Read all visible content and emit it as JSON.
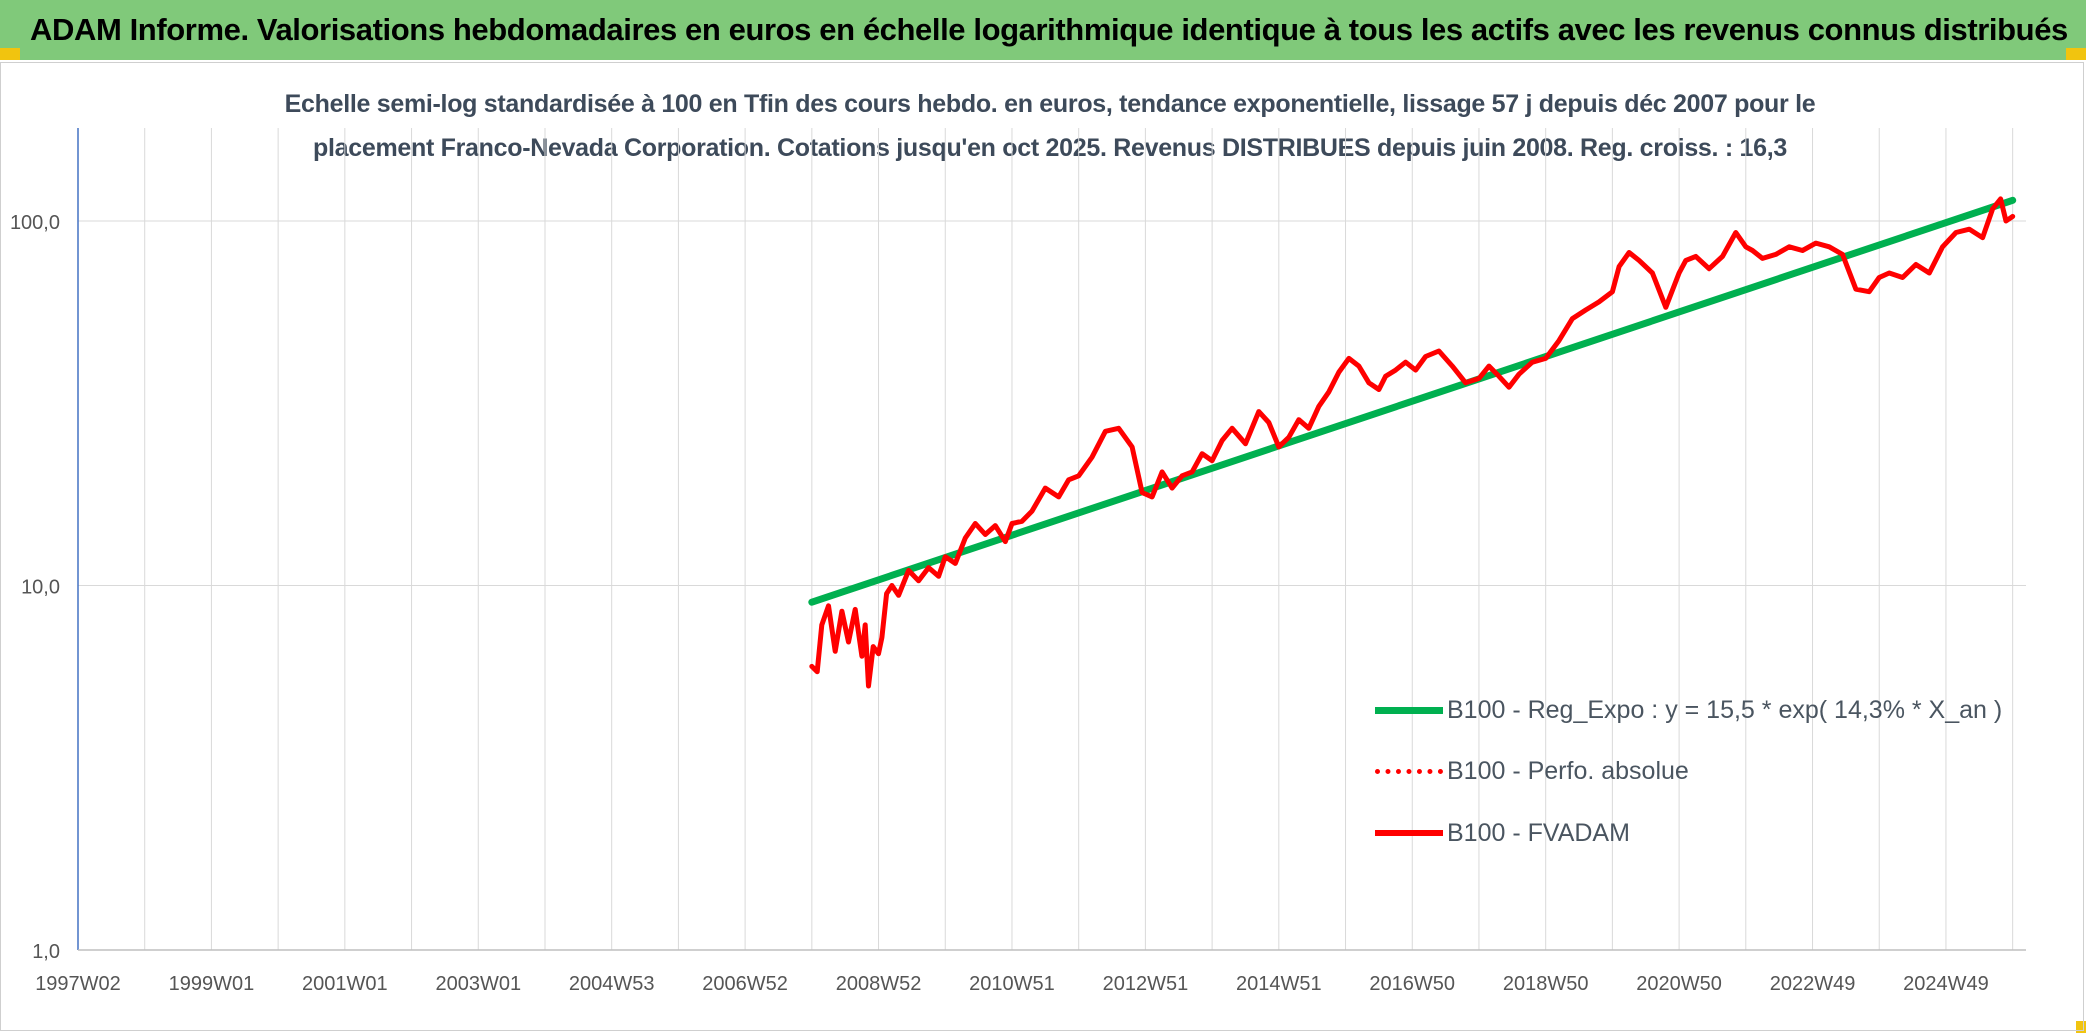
{
  "header": {
    "title": "ADAM Informe. Valorisations hebdomadaires en euros en échelle logarithmique identique à tous les actifs avec les revenus connus distribués"
  },
  "chart_data": {
    "type": "line",
    "title_line1": "Echelle semi-log standardisée à 100 en Tfin des cours hebdo. en euros, tendance exponentielle, lissage 57 j depuis déc 2007 pour le",
    "title_line2": "placement Franco-Nevada Corporation. Cotations jusqu'en oct 2025. Revenus DISTRIBUES depuis juin 2008. Reg. croiss. : 16,3",
    "y_scale": "log",
    "ylim": [
      1,
      180
    ],
    "y_ticks": [
      1,
      10,
      100
    ],
    "y_tick_labels": [
      "1,0",
      "10,0",
      "100,0"
    ],
    "xlim": [
      1997.0,
      2026.2
    ],
    "x_ticks": [
      {
        "label": "1997W02",
        "x": 1997.0
      },
      {
        "label": "1999W01",
        "x": 1999.0
      },
      {
        "label": "2001W01",
        "x": 2001.0
      },
      {
        "label": "2003W01",
        "x": 2003.0
      },
      {
        "label": "2004W53",
        "x": 2005.0
      },
      {
        "label": "2006W52",
        "x": 2007.0
      },
      {
        "label": "2008W52",
        "x": 2009.0
      },
      {
        "label": "2010W51",
        "x": 2011.0
      },
      {
        "label": "2012W51",
        "x": 2013.0
      },
      {
        "label": "2014W51",
        "x": 2015.0
      },
      {
        "label": "2016W50",
        "x": 2017.0
      },
      {
        "label": "2018W50",
        "x": 2019.0
      },
      {
        "label": "2020W50",
        "x": 2021.0
      },
      {
        "label": "2022W49",
        "x": 2023.0
      },
      {
        "label": "2024W49",
        "x": 2025.0
      }
    ],
    "grid": true,
    "legend_position": "bottom-right",
    "series": [
      {
        "name": "B100 - Reg_Expo : y = 15,5 * exp( 14,3% *  X_an )",
        "color": "#00b050",
        "style": "solid-thick",
        "x": [
          2008.0,
          2026.0
        ],
        "y": [
          9.0,
          114.0
        ]
      },
      {
        "name": "B100 - Perfo. absolue",
        "color": "#ff0000",
        "style": "dotted",
        "x": [],
        "y": []
      },
      {
        "name": "B100 - FVADAM",
        "color": "#ff0000",
        "style": "solid",
        "x": [
          2008.0,
          2008.08,
          2008.15,
          2008.25,
          2008.35,
          2008.45,
          2008.55,
          2008.65,
          2008.75,
          2008.8,
          2008.85,
          2008.92,
          2009.0,
          2009.05,
          2009.12,
          2009.2,
          2009.3,
          2009.45,
          2009.6,
          2009.75,
          2009.9,
          2010.0,
          2010.15,
          2010.3,
          2010.45,
          2010.6,
          2010.75,
          2010.9,
          2011.0,
          2011.15,
          2011.3,
          2011.5,
          2011.7,
          2011.85,
          2012.0,
          2012.2,
          2012.4,
          2012.6,
          2012.8,
          2012.95,
          2013.1,
          2013.25,
          2013.4,
          2013.55,
          2013.7,
          2013.85,
          2014.0,
          2014.15,
          2014.3,
          2014.5,
          2014.7,
          2014.85,
          2015.0,
          2015.15,
          2015.3,
          2015.45,
          2015.6,
          2015.75,
          2015.9,
          2016.05,
          2016.2,
          2016.35,
          2016.5,
          2016.6,
          2016.75,
          2016.9,
          2017.05,
          2017.2,
          2017.4,
          2017.6,
          2017.8,
          2018.0,
          2018.15,
          2018.3,
          2018.45,
          2018.6,
          2018.8,
          2019.0,
          2019.2,
          2019.4,
          2019.6,
          2019.8,
          2020.0,
          2020.1,
          2020.25,
          2020.4,
          2020.6,
          2020.8,
          2021.0,
          2021.1,
          2021.25,
          2021.45,
          2021.65,
          2021.85,
          2022.0,
          2022.1,
          2022.25,
          2022.45,
          2022.65,
          2022.85,
          2023.05,
          2023.25,
          2023.45,
          2023.65,
          2023.85,
          2024.0,
          2024.15,
          2024.35,
          2024.55,
          2024.75,
          2024.95,
          2025.15,
          2025.35,
          2025.55,
          2025.7,
          2025.82,
          2025.9,
          2026.0
        ],
        "y": [
          6.0,
          5.8,
          7.8,
          8.8,
          6.6,
          8.5,
          7.0,
          8.6,
          6.4,
          7.8,
          5.3,
          6.8,
          6.5,
          7.2,
          9.5,
          10.0,
          9.4,
          11.0,
          10.3,
          11.2,
          10.6,
          12.0,
          11.5,
          13.5,
          14.8,
          13.8,
          14.6,
          13.2,
          14.8,
          15.0,
          16.0,
          18.5,
          17.5,
          19.5,
          20.0,
          22.5,
          26.5,
          27.0,
          24.0,
          18.0,
          17.5,
          20.5,
          18.5,
          20.0,
          20.5,
          23.0,
          22.0,
          25.0,
          27.0,
          24.5,
          30.0,
          28.0,
          24.0,
          25.5,
          28.5,
          27.0,
          31.0,
          34.0,
          38.5,
          42.0,
          40.0,
          36.0,
          34.5,
          37.5,
          39.0,
          41.0,
          39.0,
          42.5,
          44.0,
          40.0,
          36.0,
          37.0,
          40.0,
          37.5,
          35.0,
          38.0,
          41.0,
          42.0,
          47.0,
          54.0,
          57.0,
          60.0,
          64.0,
          75.0,
          82.0,
          78.0,
          72.0,
          58.0,
          72.0,
          78.0,
          80.0,
          74.0,
          80.0,
          93.0,
          85.0,
          83.0,
          79.0,
          81.0,
          85.0,
          83.0,
          87.0,
          85.0,
          81.0,
          65.0,
          64.0,
          70.0,
          72.0,
          70.0,
          76.0,
          72.0,
          85.0,
          93.0,
          95.0,
          90.0,
          108.0,
          115.0,
          100.0,
          103.0
        ]
      }
    ]
  }
}
